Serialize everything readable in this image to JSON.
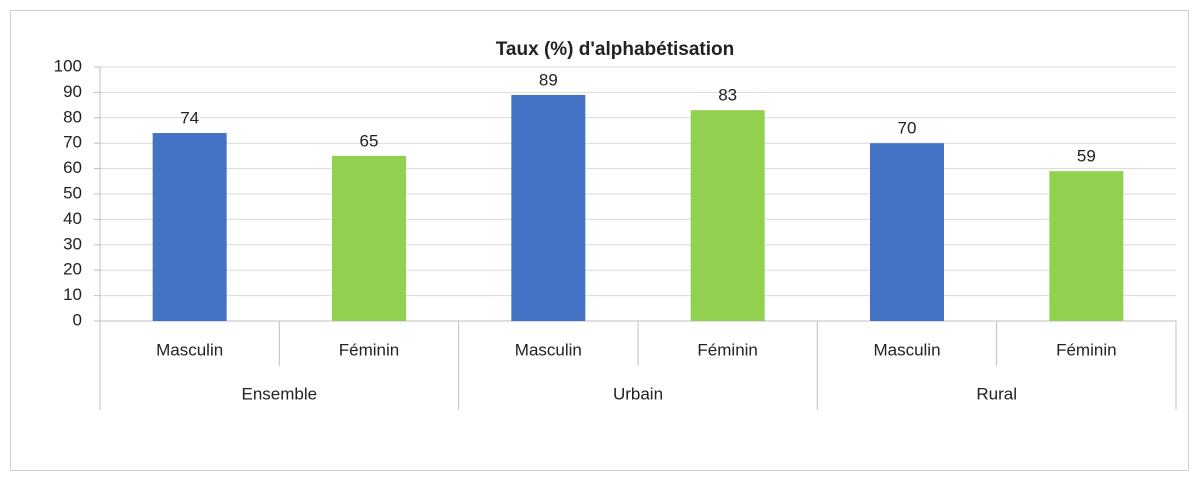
{
  "chart_data": {
    "type": "bar",
    "title": "Taux (%) d'alphabétisation",
    "categories": [
      "Masculin",
      "Féminin",
      "Masculin",
      "Féminin",
      "Masculin",
      "Féminin"
    ],
    "groups": [
      "Ensemble",
      "Urbain",
      "Rural"
    ],
    "values": [
      74,
      65,
      89,
      83,
      70,
      59
    ],
    "colors": [
      "#4472c4",
      "#92d050",
      "#4472c4",
      "#92d050",
      "#4472c4",
      "#92d050"
    ],
    "ylim": [
      0,
      100
    ],
    "yticks": [
      0,
      10,
      20,
      30,
      40,
      50,
      60,
      70,
      80,
      90,
      100
    ],
    "grid": true
  }
}
